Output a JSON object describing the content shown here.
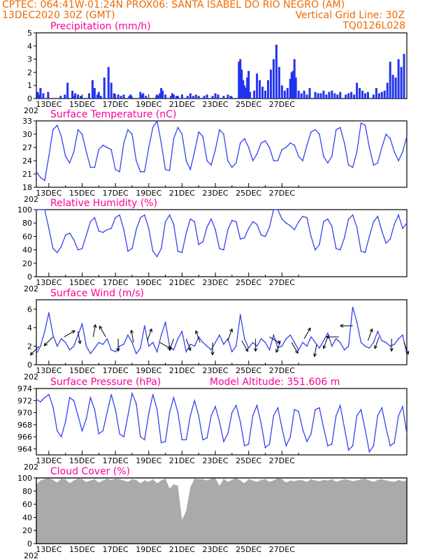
{
  "header": {
    "line1_left": "CPTEC:   064:41W-01:24N   PROX06: SANTA ISABEL DO RIO NEGRO (AM)",
    "line2_left": "13DEC2020 30Z (GMT)",
    "line2_right": "Vertical Grid Line: 30Z",
    "line3_right": "TQ0126L028"
  },
  "colors": {
    "line": "#3344ee",
    "bar": "#2233ee",
    "cloud": "#aaaaaa",
    "title": "#ff0099",
    "header": "#ee6a00"
  },
  "dates": [
    "13DEC",
    "15DEC",
    "17DEC",
    "19DEC",
    "21DEC",
    "23DEC",
    "25DEC",
    "27DEC"
  ],
  "year_fragment": "202",
  "chart_data": [
    {
      "type": "bar",
      "title": "Precipitation  (mm/h)",
      "ylim": [
        0,
        5
      ],
      "yticks": [
        0,
        1,
        2,
        3,
        4,
        5
      ],
      "x_unit": "hours from 13DEC 06Z",
      "x": [
        2,
        4,
        6,
        10,
        17,
        35,
        41,
        45,
        52,
        54,
        56,
        60,
        64,
        76,
        81,
        84,
        88,
        90,
        93,
        98,
        104,
        108,
        112,
        118,
        122,
        126,
        134,
        136,
        150,
        152,
        154,
        158,
        173,
        174,
        176,
        178,
        180,
        182,
        186,
        194,
        196,
        198,
        202,
        204,
        210,
        218,
        222,
        226,
        230,
        234,
        242,
        246,
        254,
        258,
        262,
        270,
        276,
        280,
        292,
        294,
        296,
        298,
        300,
        302,
        304,
        306,
        308,
        314,
        318,
        322,
        326,
        330,
        334,
        338,
        342,
        346,
        350,
        354,
        358,
        362,
        366,
        368,
        370,
        372,
        374,
        378,
        382,
        386,
        390,
        394,
        402,
        406,
        410,
        414,
        418,
        422,
        426,
        430,
        434,
        438,
        446,
        450,
        454,
        458,
        462,
        466,
        470,
        474,
        478,
        486,
        490,
        494,
        498,
        502,
        506,
        510,
        514,
        518,
        522,
        526,
        530
      ],
      "values": [
        0.5,
        0.3,
        0.8,
        0.4,
        0.5,
        0.2,
        0.3,
        1.2,
        0.6,
        0.2,
        0.4,
        0.3,
        0.2,
        0.4,
        1.4,
        0.8,
        0.3,
        0.5,
        0.2,
        1.6,
        2.4,
        1.2,
        0.4,
        0.3,
        0.2,
        0.3,
        0.2,
        0.3,
        0.5,
        0.3,
        0.4,
        0.2,
        0.2,
        0.3,
        0.2,
        0.4,
        0.8,
        0.6,
        0.3,
        0.2,
        0.4,
        0.3,
        0.2,
        0.2,
        0.3,
        0.2,
        0.4,
        0.2,
        0.3,
        0.2,
        0.2,
        0.3,
        0.2,
        0.4,
        0.3,
        0.2,
        0.3,
        0.2,
        2.8,
        3.0,
        2.2,
        1.4,
        1.0,
        0.8,
        1.6,
        2.1,
        0.5,
        0.6,
        1.9,
        1.4,
        0.9,
        0.6,
        1.4,
        2.2,
        3.0,
        4.1,
        2.4,
        1.0,
        0.6,
        0.8,
        1.5,
        2.0,
        2.1,
        3.0,
        1.6,
        0.6,
        0.4,
        0.6,
        0.3,
        0.8,
        0.5,
        0.4,
        0.4,
        0.6,
        0.3,
        0.5,
        0.6,
        0.4,
        0.3,
        0.5,
        0.3,
        0.4,
        0.5,
        0.3,
        1.2,
        0.8,
        0.6,
        0.4,
        0.5,
        0.3,
        0.8,
        0.4,
        0.5,
        0.6,
        1.2,
        2.8,
        1.8,
        1.6,
        3.0,
        2.4,
        3.4
      ]
    },
    {
      "type": "line",
      "title": "Surface Temperature (nC)",
      "ylim": [
        18,
        33
      ],
      "yticks": [
        18,
        21,
        24,
        27,
        30,
        33
      ],
      "x_unit": "hours from 13DEC 06Z",
      "x": [
        0,
        6,
        12,
        18,
        24,
        30,
        36,
        42,
        48,
        54,
        60,
        66,
        72,
        78,
        84,
        90,
        96,
        102,
        108,
        114,
        120,
        126,
        132,
        138,
        144,
        150,
        156,
        162,
        168,
        174,
        180,
        186,
        192,
        198,
        204,
        210,
        216,
        222,
        228,
        234,
        240,
        246,
        252,
        258,
        264,
        270,
        276,
        282,
        288,
        294,
        300,
        306,
        312,
        318,
        324,
        330,
        336,
        342,
        348,
        354,
        360,
        366,
        372,
        378,
        384,
        390,
        396,
        402,
        408,
        414,
        420,
        426,
        432,
        438,
        444,
        450,
        456,
        462,
        468,
        474,
        480,
        486,
        492,
        498,
        504,
        510,
        516,
        522,
        528,
        534
      ],
      "values": [
        21.5,
        20.2,
        19.5,
        25,
        31,
        32,
        29.5,
        25,
        23.5,
        26,
        31,
        30,
        26,
        22.5,
        22.5,
        26.5,
        27.5,
        27,
        26.5,
        22,
        21.5,
        28,
        31,
        30,
        24,
        21.5,
        21.5,
        27,
        31.5,
        33,
        28,
        22,
        21.8,
        29,
        31.5,
        30,
        24,
        22,
        26,
        30.5,
        29.5,
        24,
        23,
        26.5,
        31,
        30,
        24,
        22.5,
        23.5,
        28,
        29,
        27,
        24,
        25.5,
        28,
        28.5,
        27,
        24,
        24,
        26.5,
        27,
        28,
        27.5,
        25,
        24,
        27.5,
        30.5,
        31,
        30,
        25,
        23.5,
        25,
        31,
        31.5,
        28,
        23,
        22.5,
        26,
        32.5,
        32,
        27,
        23,
        23.5,
        27,
        30,
        29,
        26,
        24,
        26,
        29.5
      ]
    },
    {
      "type": "line",
      "title": "Relative Humidity  (%)",
      "ylim": [
        0,
        100
      ],
      "yticks": [
        0,
        20,
        40,
        60,
        80,
        100
      ],
      "x_unit": "hours from 13DEC 06Z",
      "x": [
        0,
        6,
        12,
        18,
        24,
        30,
        36,
        42,
        48,
        54,
        60,
        66,
        72,
        78,
        84,
        90,
        96,
        102,
        108,
        114,
        120,
        126,
        132,
        138,
        144,
        150,
        156,
        162,
        168,
        174,
        180,
        186,
        192,
        198,
        204,
        210,
        216,
        222,
        228,
        234,
        240,
        246,
        252,
        258,
        264,
        270,
        276,
        282,
        288,
        294,
        300,
        306,
        312,
        318,
        324,
        330,
        336,
        342,
        348,
        354,
        360,
        366,
        372,
        378,
        384,
        390,
        396,
        402,
        408,
        414,
        420,
        426,
        432,
        438,
        444,
        450,
        456,
        462,
        468,
        474,
        480,
        486,
        492,
        498,
        504,
        510,
        516,
        522,
        528,
        534
      ],
      "values": [
        100,
        100,
        100,
        72,
        42,
        36,
        45,
        62,
        65,
        55,
        40,
        42,
        62,
        82,
        88,
        68,
        66,
        70,
        72,
        88,
        92,
        70,
        38,
        42,
        70,
        88,
        92,
        72,
        38,
        30,
        42,
        82,
        92,
        78,
        38,
        36,
        65,
        86,
        82,
        48,
        52,
        74,
        86,
        70,
        42,
        40,
        70,
        84,
        82,
        56,
        58,
        72,
        82,
        78,
        62,
        60,
        74,
        100,
        100,
        86,
        80,
        76,
        70,
        82,
        90,
        88,
        60,
        40,
        48,
        82,
        86,
        75,
        42,
        40,
        58,
        86,
        92,
        74,
        38,
        36,
        60,
        82,
        90,
        68,
        50,
        56,
        78,
        92,
        72,
        80
      ]
    },
    {
      "type": "line",
      "title": "Surface Wind  (m/s)",
      "ylim": [
        0,
        7
      ],
      "yticks": [
        0,
        2,
        4,
        6
      ],
      "x_unit": "hours from 13DEC 06Z",
      "x": [
        0,
        6,
        12,
        18,
        24,
        30,
        36,
        42,
        48,
        54,
        60,
        66,
        72,
        78,
        84,
        90,
        96,
        102,
        108,
        114,
        120,
        126,
        132,
        138,
        144,
        150,
        156,
        162,
        168,
        174,
        180,
        186,
        192,
        198,
        204,
        210,
        216,
        222,
        228,
        234,
        240,
        246,
        252,
        258,
        264,
        270,
        276,
        282,
        288,
        294,
        300,
        306,
        312,
        318,
        324,
        330,
        336,
        342,
        348,
        354,
        360,
        366,
        372,
        378,
        384,
        390,
        396,
        402,
        408,
        414,
        420,
        426,
        432,
        438,
        444,
        450,
        456,
        462,
        468,
        474,
        480,
        486,
        492,
        498,
        504,
        510,
        516,
        522,
        528,
        534
      ],
      "values": [
        1.2,
        2.0,
        3.6,
        5.6,
        3.2,
        2.0,
        2.8,
        2.4,
        1.6,
        2.0,
        3.2,
        4.4,
        2.0,
        1.2,
        1.8,
        2.4,
        2.2,
        2.8,
        1.6,
        1.4,
        2.0,
        2.2,
        3.2,
        2.4,
        1.2,
        1.8,
        4.2,
        2.0,
        2.4,
        1.4,
        3.2,
        4.6,
        2.0,
        1.6,
        2.8,
        3.6,
        1.4,
        2.2,
        2.0,
        3.0,
        2.4,
        2.0,
        1.6,
        2.4,
        3.2,
        2.2,
        2.8,
        1.4,
        2.0,
        5.4,
        2.8,
        1.8,
        2.4,
        2.0,
        2.8,
        2.4,
        1.6,
        3.2,
        1.8,
        2.0,
        2.8,
        3.2,
        2.4,
        1.6,
        2.4,
        2.0,
        3.0,
        2.4,
        1.8,
        2.6,
        3.4,
        2.0,
        2.8,
        2.4,
        1.6,
        2.0,
        6.2,
        4.6,
        2.4,
        2.0,
        1.8,
        2.4,
        3.6,
        2.6,
        2.4,
        2.0,
        2.2,
        2.8,
        3.2,
        1.2
      ],
      "arrows": [
        {
          "x": 4,
          "dir": 225,
          "speed": 2.0
        },
        {
          "x": 24,
          "dir": 225,
          "speed": 3.0
        },
        {
          "x": 40,
          "dir": 60,
          "speed": 3.0
        },
        {
          "x": 60,
          "dir": 170,
          "speed": 3.6
        },
        {
          "x": 82,
          "dir": 10,
          "speed": 3.0
        },
        {
          "x": 100,
          "dir": 330,
          "speed": 3.0
        },
        {
          "x": 118,
          "dir": 180,
          "speed": 2.8
        },
        {
          "x": 140,
          "dir": 350,
          "speed": 2.4
        },
        {
          "x": 160,
          "dir": 20,
          "speed": 2.6
        },
        {
          "x": 178,
          "dir": 120,
          "speed": 2.4
        },
        {
          "x": 198,
          "dir": 200,
          "speed": 2.8
        },
        {
          "x": 216,
          "dir": 160,
          "speed": 2.8
        },
        {
          "x": 236,
          "dir": 340,
          "speed": 2.4
        },
        {
          "x": 254,
          "dir": 180,
          "speed": 2.4
        },
        {
          "x": 276,
          "dir": 20,
          "speed": 2.6
        },
        {
          "x": 296,
          "dir": 150,
          "speed": 2.6
        },
        {
          "x": 316,
          "dir": 180,
          "speed": 2.8
        },
        {
          "x": 336,
          "dir": 120,
          "speed": 3.0
        },
        {
          "x": 352,
          "dir": 200,
          "speed": 2.6
        },
        {
          "x": 368,
          "dir": 150,
          "speed": 2.4
        },
        {
          "x": 386,
          "dir": 30,
          "speed": 2.8
        },
        {
          "x": 404,
          "dir": 190,
          "speed": 2.2
        },
        {
          "x": 420,
          "dir": 200,
          "speed": 3.0
        },
        {
          "x": 436,
          "dir": 270,
          "speed": 3.0
        },
        {
          "x": 456,
          "dir": 270,
          "speed": 4.2
        },
        {
          "x": 478,
          "dir": 20,
          "speed": 2.6
        },
        {
          "x": 494,
          "dir": 200,
          "speed": 3.0
        },
        {
          "x": 512,
          "dir": 180,
          "speed": 2.8
        },
        {
          "x": 530,
          "dir": 160,
          "speed": 2.4
        }
      ]
    },
    {
      "type": "line",
      "title": "Surface Pressure  (hPa)",
      "annotation": "Model Altitude: 351.606  m",
      "ylim": [
        963,
        974
      ],
      "yticks": [
        964,
        966,
        968,
        970,
        972,
        974
      ],
      "x_unit": "hours from 13DEC 06Z",
      "x": [
        0,
        6,
        12,
        18,
        24,
        30,
        36,
        42,
        48,
        54,
        60,
        66,
        72,
        78,
        84,
        90,
        96,
        102,
        108,
        114,
        120,
        126,
        132,
        138,
        144,
        150,
        156,
        162,
        168,
        174,
        180,
        186,
        192,
        198,
        204,
        210,
        216,
        222,
        228,
        234,
        240,
        246,
        252,
        258,
        264,
        270,
        276,
        282,
        288,
        294,
        300,
        306,
        312,
        318,
        324,
        330,
        336,
        342,
        348,
        354,
        360,
        366,
        372,
        378,
        384,
        390,
        396,
        402,
        408,
        414,
        420,
        426,
        432,
        438,
        444,
        450,
        456,
        462,
        468,
        474,
        480,
        486,
        492,
        498,
        504,
        510,
        516,
        522,
        528,
        534
      ],
      "values": [
        972.2,
        971.8,
        972.5,
        973,
        971,
        967,
        966,
        968.5,
        972.5,
        972,
        969.5,
        967,
        969,
        972.5,
        970.5,
        966.5,
        967,
        970,
        973,
        970.5,
        966.5,
        966,
        969.5,
        973.2,
        971.5,
        966,
        965.5,
        969.8,
        973,
        970.5,
        965,
        965.2,
        970,
        972.5,
        970,
        965.5,
        965.5,
        969.5,
        972,
        969.5,
        965.5,
        965.8,
        969.5,
        971,
        968.5,
        965.2,
        966.5,
        970,
        971.2,
        968.5,
        964.5,
        964.8,
        969.5,
        971.2,
        968.2,
        964.2,
        964.8,
        969.5,
        970.8,
        967.5,
        964.5,
        966,
        970.5,
        970.2,
        967.2,
        965.2,
        966.5,
        970.5,
        970.8,
        967.5,
        964.5,
        964.8,
        969.5,
        971.2,
        967.5,
        963.8,
        964.5,
        969.5,
        970.5,
        967.2,
        963.5,
        964.5,
        969.5,
        970.8,
        967.5,
        964.5,
        965,
        969.5,
        971,
        966.5
      ]
    },
    {
      "type": "area",
      "title": "Cloud Cover  (%)",
      "ylim": [
        0,
        100
      ],
      "yticks": [
        0,
        20,
        40,
        60,
        80,
        100
      ],
      "x_unit": "hours from 13DEC 06Z",
      "x": [
        0,
        6,
        12,
        18,
        24,
        30,
        36,
        42,
        48,
        54,
        60,
        66,
        72,
        78,
        84,
        90,
        96,
        102,
        108,
        114,
        120,
        126,
        132,
        138,
        144,
        150,
        156,
        162,
        168,
        174,
        180,
        186,
        192,
        198,
        204,
        210,
        216,
        222,
        228,
        234,
        240,
        246,
        252,
        258,
        264,
        270,
        276,
        282,
        288,
        294,
        300,
        306,
        312,
        318,
        324,
        330,
        336,
        342,
        348,
        354,
        360,
        366,
        372,
        378,
        384,
        390,
        396,
        402,
        408,
        414,
        420,
        426,
        432,
        438,
        444,
        450,
        456,
        462,
        468,
        474,
        480,
        486,
        492,
        498,
        504,
        510,
        516,
        522,
        528,
        534
      ],
      "values": [
        90,
        96,
        98,
        100,
        97,
        93,
        99,
        98,
        92,
        96,
        99,
        98,
        94,
        96,
        98,
        93,
        96,
        99,
        97,
        99,
        98,
        96,
        94,
        98,
        97,
        92,
        96,
        94,
        98,
        92,
        96,
        99,
        84,
        90,
        88,
        36,
        50,
        86,
        99,
        98,
        98,
        96,
        99,
        100,
        88,
        99,
        94,
        97,
        100,
        96,
        92,
        98,
        96,
        94,
        97,
        98,
        94,
        96,
        100,
        98,
        93,
        96,
        95,
        97,
        96,
        94,
        98,
        96,
        95,
        97,
        96,
        98,
        94,
        96,
        98,
        97,
        95,
        96,
        98,
        99,
        96,
        94,
        97,
        98,
        96,
        95,
        94,
        97,
        95,
        96
      ]
    }
  ]
}
